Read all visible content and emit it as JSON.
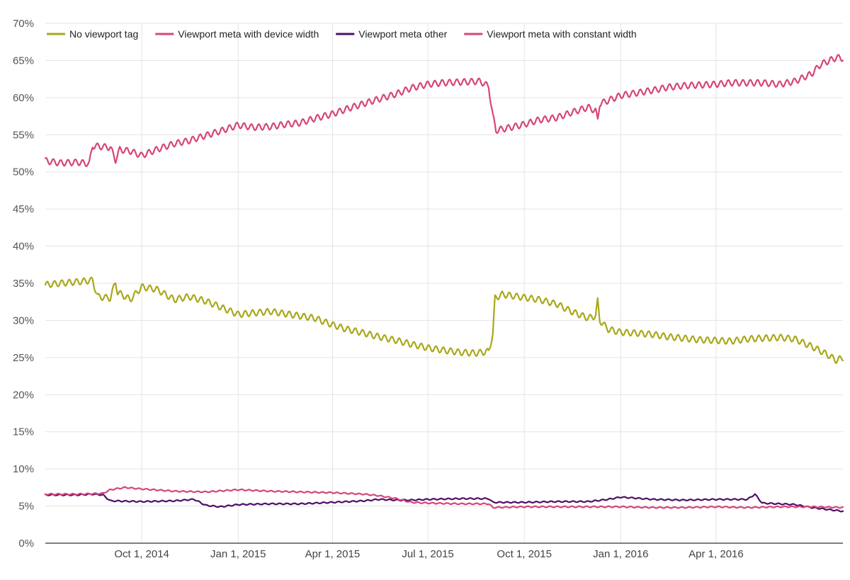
{
  "chart_data": {
    "type": "line",
    "title": "",
    "xlabel": "",
    "ylabel": "",
    "ylim": [
      0,
      70
    ],
    "y_ticks": [
      "0%",
      "5%",
      "10%",
      "15%",
      "20%",
      "25%",
      "30%",
      "35%",
      "40%",
      "45%",
      "50%",
      "55%",
      "60%",
      "65%",
      "70%"
    ],
    "x_range": [
      "2014-07-01",
      "2016-07-31"
    ],
    "x_ticks": [
      {
        "date": "2014-10-01",
        "label": "Oct 1, 2014"
      },
      {
        "date": "2015-01-01",
        "label": "Jan 1, 2015"
      },
      {
        "date": "2015-04-01",
        "label": "Apr 1, 2015"
      },
      {
        "date": "2015-07-01",
        "label": "Jul 1, 2015"
      },
      {
        "date": "2015-10-01",
        "label": "Oct 1, 2015"
      },
      {
        "date": "2016-01-01",
        "label": "Jan 1, 2016"
      },
      {
        "date": "2016-04-01",
        "label": "Apr 1, 2016"
      }
    ],
    "grid": true,
    "legend_position": "top-left",
    "series": [
      {
        "name": "No viewport tag",
        "color": "#a8a81a",
        "points": [
          [
            "2014-07-01",
            34.8
          ],
          [
            "2014-07-15",
            35.0
          ],
          [
            "2014-08-01",
            35.2
          ],
          [
            "2014-08-15",
            35.4
          ],
          [
            "2014-08-20",
            33.2
          ],
          [
            "2014-09-01",
            33.0
          ],
          [
            "2014-09-06",
            35.2
          ],
          [
            "2014-09-08",
            33.8
          ],
          [
            "2014-09-20",
            32.8
          ],
          [
            "2014-10-01",
            34.5
          ],
          [
            "2014-10-15",
            34.2
          ],
          [
            "2014-11-01",
            32.8
          ],
          [
            "2014-11-15",
            33.2
          ],
          [
            "2014-12-01",
            32.6
          ],
          [
            "2014-12-15",
            31.8
          ],
          [
            "2015-01-01",
            30.8
          ],
          [
            "2015-01-15",
            31.0
          ],
          [
            "2015-02-01",
            31.2
          ],
          [
            "2015-02-15",
            30.9
          ],
          [
            "2015-03-01",
            30.6
          ],
          [
            "2015-03-15",
            30.3
          ],
          [
            "2015-04-01",
            29.4
          ],
          [
            "2015-04-15",
            28.8
          ],
          [
            "2015-05-01",
            28.3
          ],
          [
            "2015-05-15",
            27.8
          ],
          [
            "2015-06-01",
            27.3
          ],
          [
            "2015-06-15",
            26.8
          ],
          [
            "2015-07-01",
            26.3
          ],
          [
            "2015-07-15",
            26.0
          ],
          [
            "2015-08-01",
            25.7
          ],
          [
            "2015-08-15",
            25.6
          ],
          [
            "2015-08-28",
            25.8
          ],
          [
            "2015-09-01",
            28.2
          ],
          [
            "2015-09-03",
            33.0
          ],
          [
            "2015-09-10",
            33.5
          ],
          [
            "2015-09-25",
            33.2
          ],
          [
            "2015-10-15",
            32.8
          ],
          [
            "2015-11-01",
            32.2
          ],
          [
            "2015-11-15",
            31.2
          ],
          [
            "2015-12-01",
            30.3
          ],
          [
            "2015-12-08",
            30.6
          ],
          [
            "2015-12-10",
            32.6
          ],
          [
            "2015-12-12",
            30.0
          ],
          [
            "2015-12-20",
            28.8
          ],
          [
            "2016-01-01",
            28.4
          ],
          [
            "2016-01-15",
            28.3
          ],
          [
            "2016-02-01",
            28.1
          ],
          [
            "2016-02-15",
            27.8
          ],
          [
            "2016-03-01",
            27.6
          ],
          [
            "2016-03-15",
            27.4
          ],
          [
            "2016-04-01",
            27.3
          ],
          [
            "2016-04-15",
            27.2
          ],
          [
            "2016-05-01",
            27.5
          ],
          [
            "2016-05-15",
            27.6
          ],
          [
            "2016-06-01",
            27.7
          ],
          [
            "2016-06-15",
            27.5
          ],
          [
            "2016-07-01",
            26.5
          ],
          [
            "2016-07-15",
            25.5
          ],
          [
            "2016-07-25",
            24.6
          ],
          [
            "2016-07-31",
            25.0
          ]
        ]
      },
      {
        "name": "Viewport meta with device width",
        "color": "#d6457a",
        "points": [
          [
            "2014-07-01",
            51.5
          ],
          [
            "2014-07-15",
            51.2
          ],
          [
            "2014-08-01",
            51.3
          ],
          [
            "2014-08-12",
            51.1
          ],
          [
            "2014-08-15",
            53.5
          ],
          [
            "2014-09-01",
            53.3
          ],
          [
            "2014-09-06",
            51.6
          ],
          [
            "2014-09-10",
            53.0
          ],
          [
            "2014-09-20",
            52.8
          ],
          [
            "2014-10-01",
            52.2
          ],
          [
            "2014-10-15",
            53.0
          ],
          [
            "2014-11-01",
            53.8
          ],
          [
            "2014-11-15",
            54.2
          ],
          [
            "2014-12-01",
            54.9
          ],
          [
            "2014-12-15",
            55.5
          ],
          [
            "2015-01-01",
            56.3
          ],
          [
            "2015-01-15",
            56.0
          ],
          [
            "2015-02-01",
            56.1
          ],
          [
            "2015-02-15",
            56.4
          ],
          [
            "2015-03-01",
            56.6
          ],
          [
            "2015-03-15",
            57.2
          ],
          [
            "2015-04-01",
            57.8
          ],
          [
            "2015-04-15",
            58.5
          ],
          [
            "2015-05-01",
            59.2
          ],
          [
            "2015-05-15",
            59.8
          ],
          [
            "2015-06-01",
            60.5
          ],
          [
            "2015-06-15",
            61.3
          ],
          [
            "2015-07-01",
            61.8
          ],
          [
            "2015-07-15",
            62.0
          ],
          [
            "2015-08-01",
            62.1
          ],
          [
            "2015-08-20",
            62.2
          ],
          [
            "2015-08-28",
            61.5
          ],
          [
            "2015-09-01",
            57.5
          ],
          [
            "2015-09-04",
            55.6
          ],
          [
            "2015-09-15",
            55.9
          ],
          [
            "2015-10-01",
            56.4
          ],
          [
            "2015-10-15",
            57.0
          ],
          [
            "2015-11-01",
            57.3
          ],
          [
            "2015-11-15",
            58.0
          ],
          [
            "2015-12-01",
            58.7
          ],
          [
            "2015-12-08",
            58.2
          ],
          [
            "2015-12-10",
            57.0
          ],
          [
            "2015-12-12",
            59.2
          ],
          [
            "2015-12-20",
            59.6
          ],
          [
            "2016-01-01",
            60.3
          ],
          [
            "2016-01-15",
            60.6
          ],
          [
            "2016-02-01",
            61.0
          ],
          [
            "2016-02-15",
            61.4
          ],
          [
            "2016-03-01",
            61.6
          ],
          [
            "2016-03-15",
            61.7
          ],
          [
            "2016-04-01",
            61.8
          ],
          [
            "2016-04-15",
            62.0
          ],
          [
            "2016-05-01",
            62.0
          ],
          [
            "2016-05-15",
            62.0
          ],
          [
            "2016-06-01",
            61.8
          ],
          [
            "2016-06-15",
            62.2
          ],
          [
            "2016-07-01",
            63.2
          ],
          [
            "2016-07-10",
            64.5
          ],
          [
            "2016-07-25",
            65.4
          ],
          [
            "2016-07-31",
            65.3
          ]
        ]
      },
      {
        "name": "Viewport meta other",
        "color": "#4f0f66",
        "points": [
          [
            "2014-07-01",
            6.5
          ],
          [
            "2014-08-01",
            6.5
          ],
          [
            "2014-08-15",
            6.6
          ],
          [
            "2014-08-25",
            6.5
          ],
          [
            "2014-09-01",
            5.7
          ],
          [
            "2014-10-01",
            5.6
          ],
          [
            "2014-11-01",
            5.7
          ],
          [
            "2014-11-20",
            5.9
          ],
          [
            "2014-12-01",
            5.1
          ],
          [
            "2014-12-15",
            4.9
          ],
          [
            "2015-01-01",
            5.2
          ],
          [
            "2015-02-01",
            5.3
          ],
          [
            "2015-03-01",
            5.3
          ],
          [
            "2015-04-01",
            5.5
          ],
          [
            "2015-05-01",
            5.7
          ],
          [
            "2015-05-15",
            5.9
          ],
          [
            "2015-06-01",
            5.8
          ],
          [
            "2015-06-15",
            5.8
          ],
          [
            "2015-07-01",
            5.9
          ],
          [
            "2015-08-01",
            6.0
          ],
          [
            "2015-08-28",
            6.0
          ],
          [
            "2015-09-01",
            5.5
          ],
          [
            "2015-10-01",
            5.5
          ],
          [
            "2015-11-01",
            5.6
          ],
          [
            "2015-12-01",
            5.6
          ],
          [
            "2015-12-20",
            5.9
          ],
          [
            "2016-01-01",
            6.2
          ],
          [
            "2016-02-01",
            5.9
          ],
          [
            "2016-03-01",
            5.8
          ],
          [
            "2016-04-01",
            5.9
          ],
          [
            "2016-05-01",
            5.9
          ],
          [
            "2016-05-08",
            6.6
          ],
          [
            "2016-05-15",
            5.4
          ],
          [
            "2016-06-15",
            5.2
          ],
          [
            "2016-07-01",
            4.8
          ],
          [
            "2016-07-31",
            4.3
          ]
        ]
      },
      {
        "name": "Viewport meta with constant width",
        "color": "#d6457a",
        "points": [
          [
            "2014-07-01",
            6.6
          ],
          [
            "2014-08-01",
            6.6
          ],
          [
            "2014-08-25",
            6.7
          ],
          [
            "2014-09-01",
            7.2
          ],
          [
            "2014-09-15",
            7.5
          ],
          [
            "2014-10-01",
            7.3
          ],
          [
            "2014-11-01",
            7.0
          ],
          [
            "2014-12-01",
            6.9
          ],
          [
            "2015-01-01",
            7.2
          ],
          [
            "2015-02-01",
            7.0
          ],
          [
            "2015-03-01",
            6.9
          ],
          [
            "2015-04-01",
            6.8
          ],
          [
            "2015-05-01",
            6.6
          ],
          [
            "2015-05-15",
            6.4
          ],
          [
            "2015-06-01",
            6.0
          ],
          [
            "2015-06-15",
            5.5
          ],
          [
            "2015-07-01",
            5.4
          ],
          [
            "2015-08-01",
            5.3
          ],
          [
            "2015-08-28",
            5.3
          ],
          [
            "2015-09-01",
            4.8
          ],
          [
            "2015-10-01",
            4.9
          ],
          [
            "2015-11-01",
            4.9
          ],
          [
            "2015-12-01",
            4.9
          ],
          [
            "2016-01-01",
            4.9
          ],
          [
            "2016-02-01",
            4.8
          ],
          [
            "2016-03-01",
            4.8
          ],
          [
            "2016-04-01",
            4.9
          ],
          [
            "2016-05-01",
            4.8
          ],
          [
            "2016-06-01",
            4.9
          ],
          [
            "2016-07-01",
            4.9
          ],
          [
            "2016-07-31",
            4.8
          ]
        ]
      }
    ]
  }
}
